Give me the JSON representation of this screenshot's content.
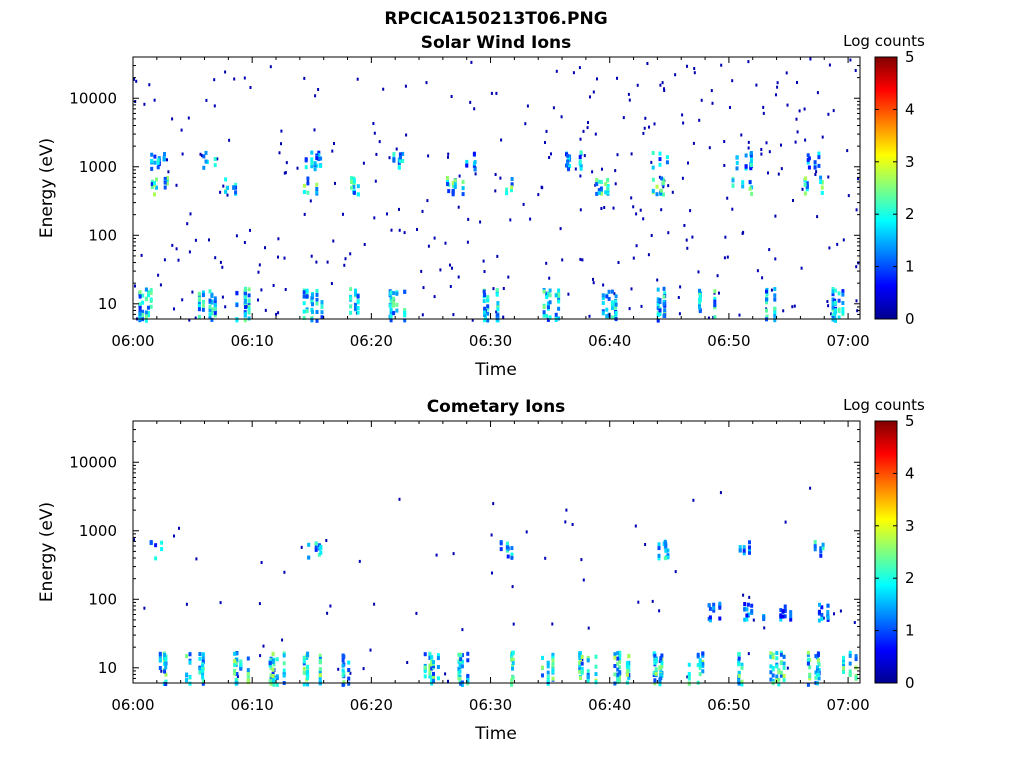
{
  "figure": {
    "title": "RPCICA150213T06.PNG"
  },
  "colorbar": {
    "label": "Log counts",
    "ticks": [
      "0",
      "1",
      "2",
      "3",
      "4",
      "5"
    ],
    "min": 0,
    "max": 5,
    "colormap": "jet"
  },
  "chart_data": [
    {
      "type": "heatmap",
      "title": "Solar Wind Ions",
      "xlabel": "Time",
      "ylabel": "Energy (eV)",
      "x_ticks": [
        "06:00",
        "06:10",
        "06:20",
        "06:30",
        "06:40",
        "06:50",
        "07:00"
      ],
      "xlim": [
        "06:00",
        "07:01"
      ],
      "y_scale": "log",
      "y_ticks": [
        "10",
        "100",
        "1000",
        "10000"
      ],
      "ylim": [
        6,
        40000
      ],
      "colorbar_label": "Log counts",
      "color_range": [
        0,
        5
      ],
      "bands": [
        {
          "energy_ev": 560,
          "log_counts_peak": 2.8,
          "description_times": [
            "06:02",
            "06:08",
            "06:15",
            "06:19",
            "06:27",
            "06:31",
            "06:39",
            "06:44",
            "06:51",
            "06:57"
          ]
        },
        {
          "energy_ev": 1300,
          "log_counts_peak": 2.2,
          "description_times": [
            "06:02",
            "06:06",
            "06:15",
            "06:22",
            "06:28",
            "06:37",
            "06:44",
            "06:51",
            "06:57"
          ]
        },
        {
          "energy_ev": 10,
          "log_counts_peak": 2.5,
          "description_times": [
            "06:01",
            "06:06",
            "06:09",
            "06:15",
            "06:18",
            "06:22",
            "06:30",
            "06:35",
            "06:40",
            "06:44",
            "06:48",
            "06:53",
            "06:59"
          ]
        }
      ]
    },
    {
      "type": "heatmap",
      "title": "Cometary Ions",
      "xlabel": "Time",
      "ylabel": "Energy (eV)",
      "x_ticks": [
        "06:00",
        "06:10",
        "06:20",
        "06:30",
        "06:40",
        "06:50",
        "07:00"
      ],
      "xlim": [
        "06:00",
        "07:01"
      ],
      "y_scale": "log",
      "y_ticks": [
        "10",
        "100",
        "1000",
        "10000"
      ],
      "ylim": [
        6,
        40000
      ],
      "colorbar_label": "Log counts",
      "color_range": [
        0,
        5
      ],
      "bands": [
        {
          "energy_ev": 10,
          "log_counts_peak": 2.8,
          "description_times": [
            "06:02",
            "06:05",
            "06:09",
            "06:12",
            "06:15",
            "06:18",
            "06:25",
            "06:28",
            "06:31",
            "06:35",
            "06:38",
            "06:41",
            "06:44",
            "06:47",
            "06:51",
            "06:54",
            "06:57",
            "07:00"
          ]
        },
        {
          "energy_ev": 70,
          "log_counts_peak": 1.8,
          "description_times": [
            "06:49",
            "06:52",
            "06:55",
            "06:58"
          ]
        },
        {
          "energy_ev": 560,
          "log_counts_peak": 2.3,
          "description_times": [
            "06:02",
            "06:15",
            "06:31",
            "06:44",
            "06:51",
            "06:57"
          ]
        }
      ]
    }
  ]
}
